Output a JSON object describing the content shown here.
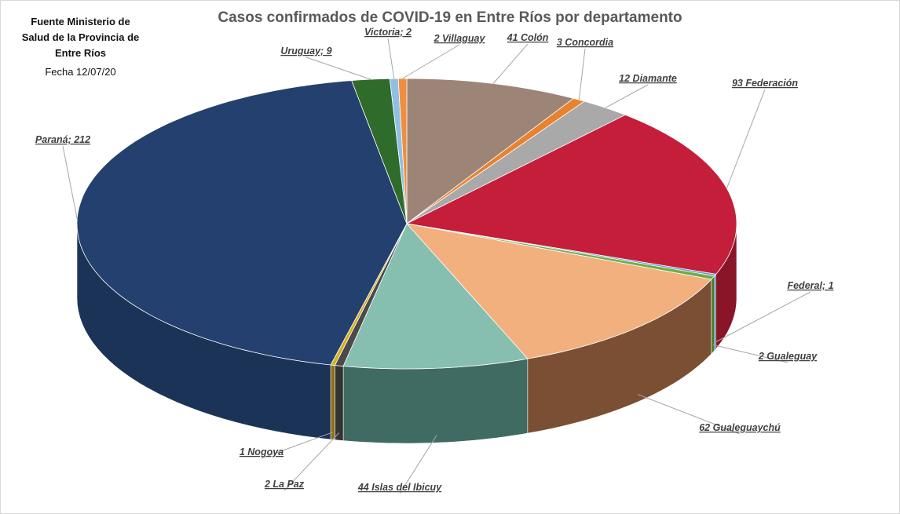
{
  "source_note": {
    "line1": "Fuente Ministerio de",
    "line2": "Salud de la Provincia de",
    "line3": "Entre Ríos",
    "date": "Fecha 12/07/20"
  },
  "chart_data": {
    "type": "pie",
    "title": "Casos confirmados de COVID-19 en Entre Ríos por departamento",
    "start": "top",
    "direction": "clockwise",
    "style": "3d-exploded-none",
    "slices": [
      {
        "name": "Colón",
        "value": 41,
        "label": "41 Colón",
        "color": "#9c8577",
        "side": "#6f5c50"
      },
      {
        "name": "Concordia",
        "value": 3,
        "label": "3 Concordia",
        "color": "#e8822e",
        "side": "#a85a1c"
      },
      {
        "name": "Diamante",
        "value": 12,
        "label": "12 Diamante",
        "color": "#a9a9a9",
        "side": "#777777"
      },
      {
        "name": "Federación",
        "value": 93,
        "label": "93 Federación",
        "color": "#c41e3a",
        "side": "#8a1428"
      },
      {
        "name": "Federal",
        "value": 1,
        "label": "Federal; 1",
        "color": "#5b9bd5",
        "side": "#2e5f8c"
      },
      {
        "name": "Gualeguay",
        "value": 2,
        "label": "2 Gualeguay",
        "color": "#70ad47",
        "side": "#4a7a2c"
      },
      {
        "name": "Gualeguaychú",
        "value": 62,
        "label": "62 Gualeguaychú",
        "color": "#f2b07e",
        "side": "#7a4f34"
      },
      {
        "name": "Islas del Ibicuy",
        "value": 44,
        "label": "44 Islas del Ibicuy",
        "color": "#86bfb0",
        "side": "#3f6b62"
      },
      {
        "name": "La Paz",
        "value": 2,
        "label": "2 La Paz",
        "color": "#4a4a4a",
        "side": "#333333"
      },
      {
        "name": "Nogoyá",
        "value": 1,
        "label": "1 Nogoya",
        "color": "#d4b020",
        "side": "#8a7010"
      },
      {
        "name": "Paraná",
        "value": 212,
        "label": "Paraná; 212",
        "color": "#24406e",
        "side": "#1c3358"
      },
      {
        "name": "Uruguay",
        "value": 9,
        "label": "Uruguay; 9",
        "color": "#2f6b2a",
        "side": "#1f4a1c"
      },
      {
        "name": "Victoria",
        "value": 2,
        "label": "Victoria; 2",
        "color": "#8fc0e3",
        "side": "#5e8eb0"
      },
      {
        "name": "Villaguay",
        "value": 2,
        "label": "2 Villaguay",
        "color": "#ee8f40",
        "side": "#b0621f"
      }
    ]
  }
}
